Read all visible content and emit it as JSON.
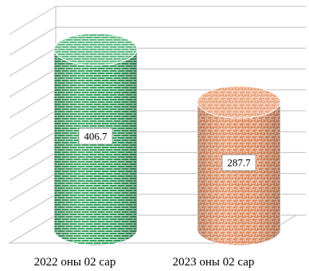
{
  "chart_data": {
    "type": "bar",
    "style": "3d-cylinder",
    "categories": [
      "2022 оны 02 сар",
      "2023 оны 02 сар"
    ],
    "values": [
      406.7,
      287.7
    ],
    "value_labels": [
      "406.7",
      "287.7"
    ],
    "series_colors": [
      "#2fa35c",
      "#e08a5a"
    ],
    "grid": true,
    "ylim": [
      0,
      500
    ]
  }
}
